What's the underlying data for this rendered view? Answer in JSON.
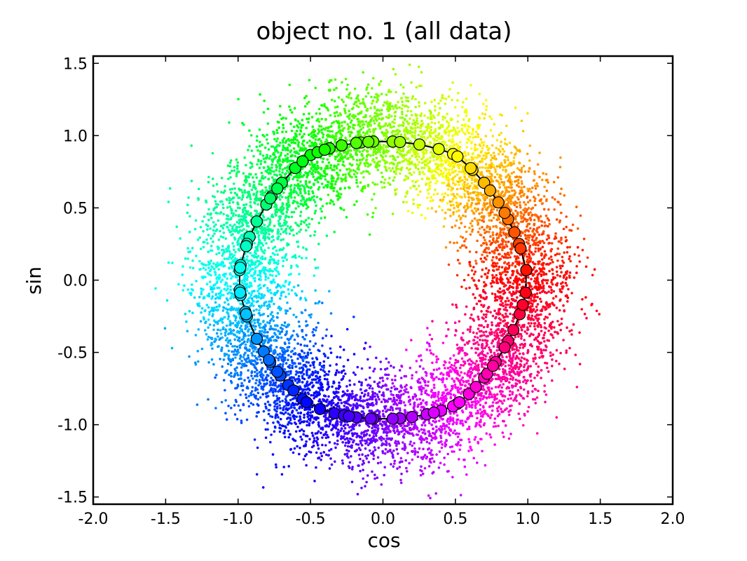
{
  "chart_data": {
    "type": "scatter",
    "title": "object no. 1 (all data)",
    "xlabel": "cos",
    "ylabel": "sin",
    "xlim": [
      -2.0,
      2.0
    ],
    "ylim": [
      -1.55,
      1.55
    ],
    "x_ticks": [
      "-2.0",
      "-1.5",
      "-1.0",
      "-0.5",
      "0.0",
      "0.5",
      "1.0",
      "1.5",
      "2.0"
    ],
    "y_ticks": [
      "1.5",
      "1.0",
      "0.5",
      "0.0",
      "-0.5",
      "-1.0",
      "-1.5"
    ],
    "grid": false,
    "color_encoding": "hue by angle",
    "scatter_series": {
      "description": "noisy points around unit circle",
      "radius_mean": 1.0,
      "radius_spread": 0.17,
      "point_count": 9000
    },
    "markers_angles_deg": [
      4,
      -5,
      15,
      -14,
      26,
      -26,
      34,
      -36,
      44,
      -44,
      51,
      -53,
      61,
      -59,
      67,
      -66,
      75,
      -72,
      86,
      -83,
      94,
      -94,
      99,
      -101,
      107,
      -110,
      112,
      -116,
      120,
      -124,
      128,
      -132,
      136,
      -137,
      143,
      -144,
      147,
      -149,
      155,
      -155,
      162,
      -165,
      165,
      -167,
      174,
      -176,
      176,
      -174,
      185,
      -185,
      194,
      -194,
      205,
      -205,
      215,
      -216,
      221,
      -221,
      231,
      -236,
      238,
      -243,
      244,
      -246,
      254,
      -253,
      256,
      -259,
      265,
      -264,
      274,
      -274,
      282,
      -277,
      291,
      -293,
      299,
      -301,
      302,
      -308,
      311,
      -316,
      318,
      -320,
      322,
      -331,
      331,
      -340,
      339,
      -347,
      350,
      -356
    ],
    "line_color": "#000000"
  }
}
